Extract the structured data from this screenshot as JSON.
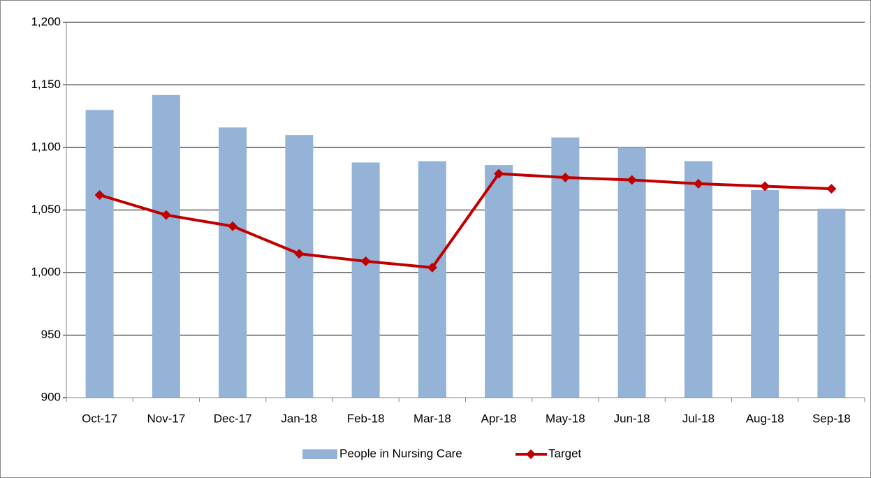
{
  "chart_data": {
    "type": "bar-line",
    "categories": [
      "Oct-17",
      "Nov-17",
      "Dec-17",
      "Jan-18",
      "Feb-18",
      "Mar-18",
      "Apr-18",
      "May-18",
      "Jun-18",
      "Jul-18",
      "Aug-18",
      "Sep-18"
    ],
    "series": [
      {
        "name": "People in Nursing Care",
        "type": "bar",
        "color": "#95b3d7",
        "values": [
          1130,
          1142,
          1116,
          1110,
          1088,
          1089,
          1086,
          1108,
          1100,
          1089,
          1066,
          1051
        ]
      },
      {
        "name": "Target",
        "type": "line",
        "color": "#c00000",
        "values": [
          1062,
          1046,
          1037,
          1015,
          1009,
          1004,
          1079,
          1076,
          1074,
          1071,
          1069,
          1067
        ]
      }
    ],
    "ylim": [
      900,
      1200
    ],
    "yticks": [
      900,
      950,
      {
        "value": 1000,
        "label": "1,000"
      },
      {
        "value": 1050,
        "label": "1,050"
      },
      {
        "value": 1100,
        "label": "1,100"
      },
      {
        "value": 1150,
        "label": "1,150"
      },
      {
        "value": 1200,
        "label": "1,200"
      }
    ],
    "grid": true,
    "legend": "bottom"
  }
}
